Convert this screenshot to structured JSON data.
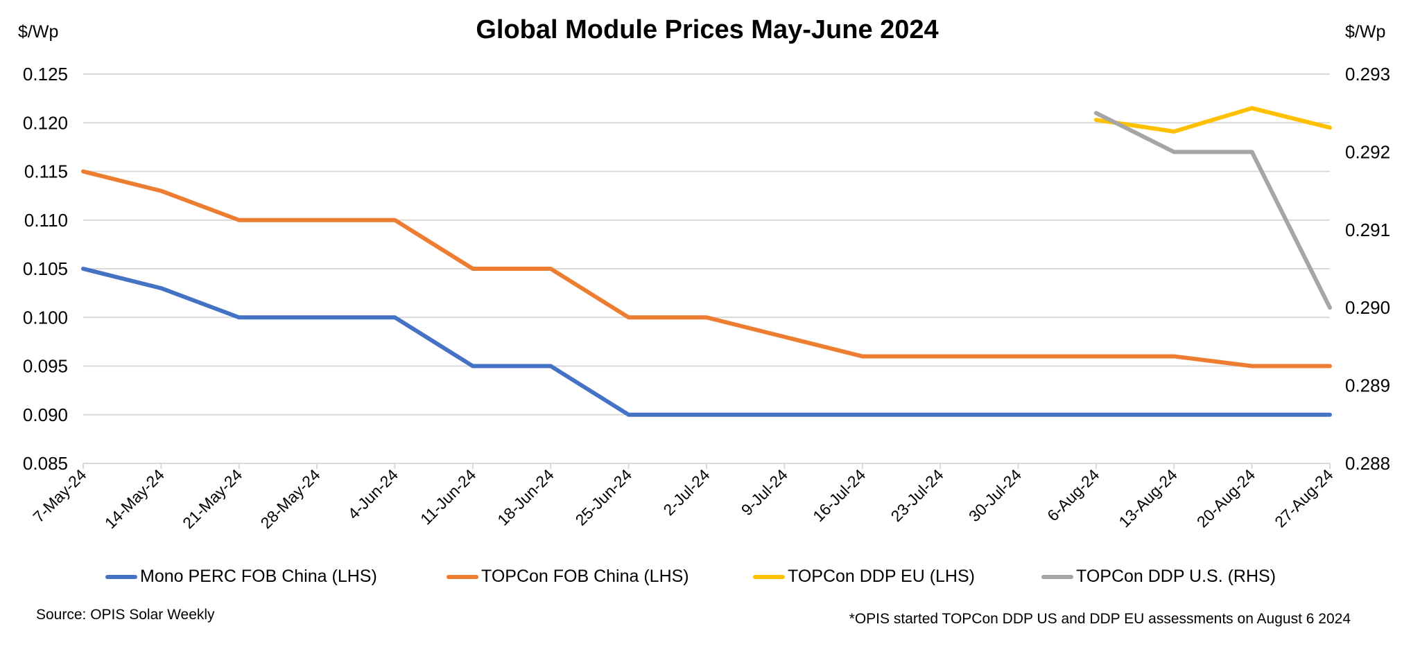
{
  "chart_data": {
    "type": "line",
    "title": "Global Module Prices May-June 2024",
    "ylabel_left": "$/Wp",
    "ylabel_right": "$/Wp",
    "ylim_left": [
      0.085,
      0.125
    ],
    "yticks_left": [
      "0.085",
      "0.090",
      "0.095",
      "0.100",
      "0.105",
      "0.110",
      "0.115",
      "0.120",
      "0.125"
    ],
    "ylim_right": [
      0.288,
      0.293
    ],
    "yticks_right": [
      "0.288",
      "0.289",
      "0.290",
      "0.291",
      "0.292",
      "0.293"
    ],
    "grid": true,
    "legend_position": "bottom",
    "categories": [
      "7-May-24",
      "14-May-24",
      "21-May-24",
      "28-May-24",
      "4-Jun-24",
      "11-Jun-24",
      "18-Jun-24",
      "25-Jun-24",
      "2-Jul-24",
      "9-Jul-24",
      "16-Jul-24",
      "23-Jul-24",
      "30-Jul-24",
      "6-Aug-24",
      "13-Aug-24",
      "20-Aug-24",
      "27-Aug-24"
    ],
    "series": [
      {
        "name": "Mono PERC FOB China (LHS)",
        "axis": "left",
        "color": "#4472C4",
        "values": [
          0.105,
          0.103,
          0.1,
          0.1,
          0.1,
          0.095,
          0.095,
          0.09,
          0.09,
          0.09,
          0.09,
          0.09,
          0.09,
          0.09,
          0.09,
          0.09,
          0.09
        ]
      },
      {
        "name": "TOPCon FOB China (LHS)",
        "axis": "left",
        "color": "#ED7D31",
        "values": [
          0.115,
          0.113,
          0.11,
          0.11,
          0.11,
          0.105,
          0.105,
          0.1,
          0.1,
          0.098,
          0.096,
          0.096,
          0.096,
          0.096,
          0.096,
          0.095,
          0.095
        ]
      },
      {
        "name": "TOPCon DDP EU (LHS)",
        "axis": "left",
        "color": "#FFC000",
        "values": [
          null,
          null,
          null,
          null,
          null,
          null,
          null,
          null,
          null,
          null,
          null,
          null,
          null,
          0.1203,
          0.1191,
          0.1215,
          0.1195
        ]
      },
      {
        "name": "TOPCon DDP U.S. (RHS)",
        "axis": "right",
        "color": "#A5A5A5",
        "values": [
          null,
          null,
          null,
          null,
          null,
          null,
          null,
          null,
          null,
          null,
          null,
          null,
          null,
          0.2925,
          0.292,
          0.292,
          0.29
        ]
      }
    ]
  },
  "footer": {
    "source": "Source: OPIS Solar Weekly",
    "note": "*OPIS started TOPCon DDP US and DDP EU assessments on August 6 2024"
  }
}
